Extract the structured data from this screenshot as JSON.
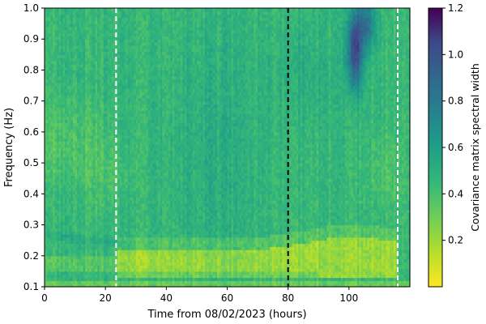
{
  "chart_data": {
    "type": "heatmap",
    "title": "",
    "xlabel": "Time from 08/02/2023 (hours)",
    "ylabel": "Frequency (Hz)",
    "xlim": [
      0,
      120
    ],
    "ylim": [
      0.1,
      1.0
    ],
    "x_ticks": [
      0,
      20,
      40,
      60,
      80,
      100
    ],
    "y_ticks": [
      0.1,
      0.2,
      0.3,
      0.4,
      0.5,
      0.6,
      0.7,
      0.8,
      0.9,
      1.0
    ],
    "x_tick_labels": [
      "0",
      "20",
      "40",
      "60",
      "80",
      "100"
    ],
    "y_tick_labels": [
      "0.1",
      "0.2",
      "0.3",
      "0.4",
      "0.5",
      "0.6",
      "0.7",
      "0.8",
      "0.9",
      "1.0"
    ],
    "colorbar": {
      "label": "Covariance matrix spectral width",
      "range": [
        0,
        1.2
      ],
      "ticks": [
        0.2,
        0.4,
        0.6,
        0.8,
        1.0,
        1.2
      ],
      "tick_labels": [
        "0.2",
        "0.4",
        "0.6",
        "0.8",
        "1.0",
        "1.2"
      ],
      "colormap": "viridis_r"
    },
    "vertical_lines": [
      {
        "x": 23.5,
        "color": "#ffffff",
        "style": "dashed"
      },
      {
        "x": 80,
        "color": "#000000",
        "style": "dashed"
      },
      {
        "x": 116,
        "color": "#ffffff",
        "style": "dashed"
      }
    ],
    "grid": false
  }
}
